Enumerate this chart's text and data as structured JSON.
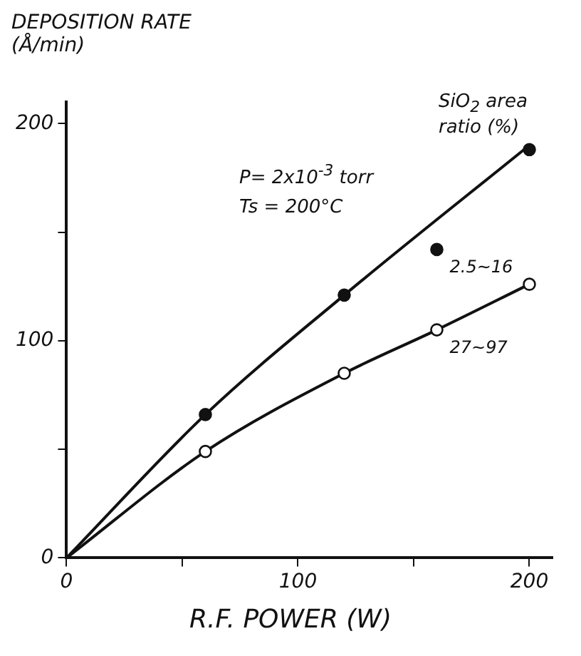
{
  "chart_data": {
    "type": "scatter",
    "xlabel": "R.F. POWER (W)",
    "ylabel": "DEPOSITION RATE (Å/min)",
    "annotations": [
      "P= 2x10$^{-3}$ torr",
      "Ts = 200°C",
      "SiO$_{2}$ area ratio (%)"
    ],
    "xlim": [
      0,
      210
    ],
    "ylim": [
      0,
      210
    ],
    "xticks": [
      0,
      {
        "value": 50,
        "label": null
      },
      100,
      {
        "value": 150,
        "label": null
      },
      200
    ],
    "yticks": [
      0,
      {
        "value": 50,
        "label": null
      },
      100,
      {
        "value": 150,
        "label": null
      },
      200
    ],
    "grid": false,
    "legend": false,
    "series": [
      {
        "name": "2.5~16",
        "marker": "circle",
        "color": "#111111",
        "x": [
          60,
          120,
          160,
          200
        ],
        "values": [
          66,
          121,
          142,
          188
        ]
      },
      {
        "name": "27~97",
        "marker": "circle",
        "color": "#ffffff",
        "x": [
          60,
          120,
          160,
          200
        ],
        "values": [
          49,
          85,
          105,
          126
        ]
      },
      {
        "type": "line",
        "marker": "none",
        "color": "#111111",
        "x": [
          0,
          60,
          120,
          200
        ],
        "values": [
          0,
          66,
          121,
          190
        ]
      },
      {
        "type": "line",
        "marker": "none",
        "color": "#111111",
        "x": [
          0,
          60,
          120,
          160,
          200
        ],
        "values": [
          0,
          49,
          85,
          105,
          126
        ]
      }
    ]
  }
}
